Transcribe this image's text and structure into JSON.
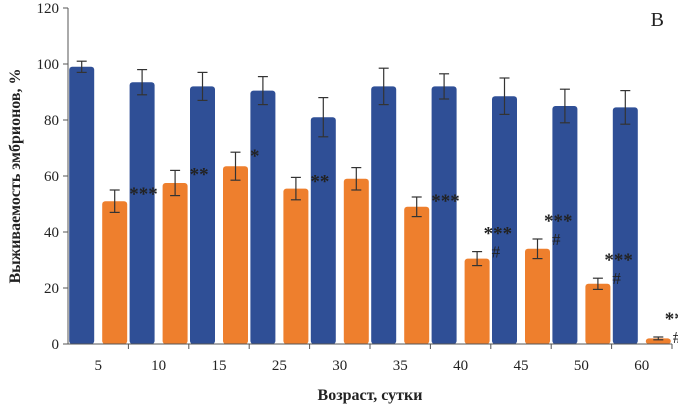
{
  "chart_data": {
    "type": "bar",
    "panel_label": "B",
    "xlabel": "Возраст, сутки",
    "ylabel": "Выживаемость эмбрионов, %",
    "ylim": [
      0,
      120
    ],
    "yticks": [
      "0",
      "20",
      "40",
      "60",
      "80",
      "100",
      "120"
    ],
    "grid": false,
    "categories": [
      "5",
      "10",
      "15",
      "25",
      "30",
      "35",
      "40",
      "45",
      "50",
      "60"
    ],
    "series": [
      {
        "color": "#2f4f96",
        "values": [
          99,
          93.5,
          92,
          90.5,
          81,
          92,
          92,
          88.5,
          85,
          84.5
        ],
        "errors": [
          2,
          4.5,
          5,
          5,
          7,
          6.5,
          4.5,
          6.5,
          6,
          6
        ]
      },
      {
        "color": "#ee7f2d",
        "values": [
          51,
          57.5,
          63.5,
          55.5,
          59,
          49,
          30.5,
          34,
          21.5,
          2
        ],
        "errors": [
          4,
          4.5,
          5,
          4,
          4,
          3.5,
          2.5,
          3.5,
          2,
          0.5
        ]
      }
    ],
    "annotations": [
      [
        "***",
        ""
      ],
      [
        "**",
        ""
      ],
      [
        "*",
        ""
      ],
      [
        "**",
        ""
      ],
      [
        "",
        ""
      ],
      [
        "***",
        ""
      ],
      [
        "***",
        "#"
      ],
      [
        "***",
        "#"
      ],
      [
        "***",
        "#"
      ],
      [
        "***",
        "##"
      ]
    ]
  }
}
